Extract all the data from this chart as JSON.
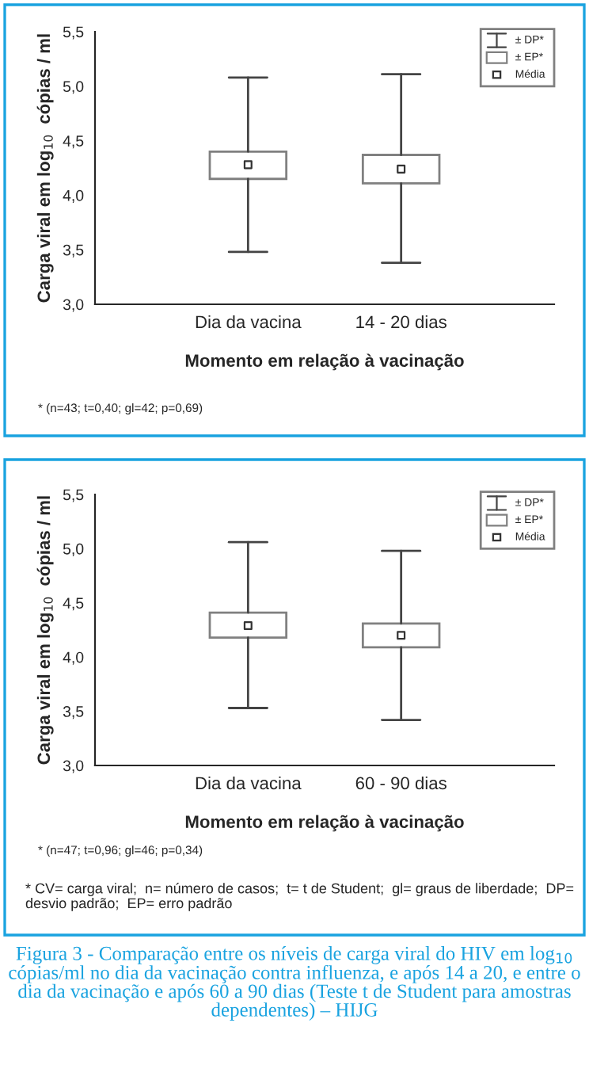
{
  "chart_data": [
    {
      "type": "box",
      "categories": [
        "Dia da vacina",
        "14 - 20 dias"
      ],
      "xlabel": "Momento em relação à vacinação",
      "ylabel": "Carga viral em log$_{10}$  cópias / ml",
      "boxes": [
        {
          "low": 3.48,
          "q1": 4.15,
          "q3": 4.4,
          "high": 5.08,
          "mean": 4.28
        },
        {
          "low": 3.38,
          "q1": 4.11,
          "q3": 4.37,
          "high": 5.11,
          "mean": 4.24
        }
      ],
      "ylim": [
        3.0,
        5.5
      ],
      "yticks": [
        {
          "value": 3.0,
          "label": "3,0"
        },
        {
          "value": 3.5,
          "label": "3,5"
        },
        {
          "value": 4.0,
          "label": "4,0"
        },
        {
          "value": 4.5,
          "label": "4,5"
        },
        {
          "value": 5.0,
          "label": "5,0"
        },
        {
          "value": 5.5,
          "label": "5,5"
        }
      ],
      "grid": false,
      "annotations": [
        "± DP*",
        "± EP*",
        "Média",
        "* (n=43; t=0,40; gl=42; p=0,69)"
      ]
    },
    {
      "type": "box",
      "categories": [
        "Dia da vacina",
        "60 - 90 dias"
      ],
      "xlabel": "Momento em relação à vacinação",
      "ylabel": "Carga viral em log$_{10}$  cópias / ml",
      "boxes": [
        {
          "low": 3.53,
          "q1": 4.18,
          "q3": 4.41,
          "high": 5.06,
          "mean": 4.29
        },
        {
          "low": 3.42,
          "q1": 4.09,
          "q3": 4.31,
          "high": 4.98,
          "mean": 4.2
        }
      ],
      "ylim": [
        3.0,
        5.5
      ],
      "yticks": [
        {
          "value": 3.0,
          "label": "3,0"
        },
        {
          "value": 3.5,
          "label": "3,5"
        },
        {
          "value": 4.0,
          "label": "4,0"
        },
        {
          "value": 4.5,
          "label": "4,5"
        },
        {
          "value": 5.0,
          "label": "5,0"
        },
        {
          "value": 5.5,
          "label": "5,5"
        }
      ],
      "grid": false,
      "annotations": [
        "± DP*",
        "± EP*",
        "Média",
        "* (n=47; t=0,96; gl=46; p=0,34)",
        "* CV= carga viral;  n= número de casos;  t= t de Student;  gl= graus de liberdade;  DP= desvio padrão;  EP= erro padrão",
        "Figura 3 - Comparação entre os níveis de carga viral do HIV em log$_{10}$ cópias/ml no dia da vacinação contra influenza, e após 14 a 20, e entre o dia da vacinação e após 60 a 90 dias (Teste t de Student para amostras dependentes) – HIJG"
      ]
    }
  ]
}
